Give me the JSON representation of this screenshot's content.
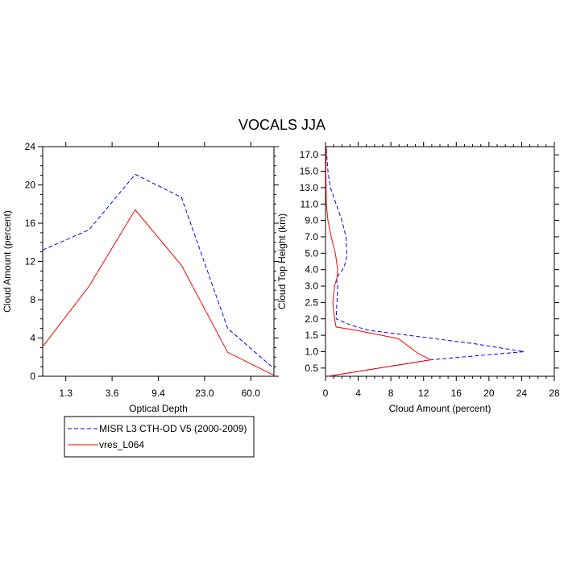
{
  "title": "VOCALS JJA",
  "legend": {
    "items": [
      {
        "label": "MISR L3 CTH-OD V5 (2000-2009)",
        "color": "#0000ff",
        "dash": "dashed"
      },
      {
        "label": "vres_L064",
        "color": "#ff0000",
        "dash": "solid"
      }
    ]
  },
  "chart_data": [
    {
      "type": "line",
      "xlabel": "Optical Depth",
      "ylabel": "Cloud Amount (percent)",
      "xtick_labels": [
        "1.3",
        "3.6",
        "9.4",
        "23.0",
        "60.0"
      ],
      "xtick_index": [
        0.5,
        1.5,
        2.5,
        3.5,
        4.5
      ],
      "ylim": [
        0,
        24
      ],
      "yticks": [
        0,
        4,
        8,
        12,
        16,
        20,
        24
      ],
      "x": [
        0,
        1,
        2,
        3,
        4,
        5
      ],
      "series": [
        {
          "name": "MISR L3 CTH-OD V5 (2000-2009)",
          "values": [
            13.2,
            15.3,
            21.1,
            18.7,
            5.0,
            0.8
          ]
        },
        {
          "name": "vres_L064",
          "values": [
            3.1,
            9.4,
            17.4,
            11.6,
            2.5,
            0.1
          ]
        }
      ]
    },
    {
      "type": "line",
      "xlabel": "Cloud Amount (percent)",
      "ylabel": "Cloud Top Height (km)",
      "xlim": [
        0,
        28
      ],
      "xticks": [
        0,
        4,
        8,
        12,
        16,
        20,
        24,
        28
      ],
      "ytick_labels": [
        "0.5",
        "1.0",
        "1.5",
        "2.0",
        "2.5",
        "3.0",
        "4.0",
        "5.0",
        "7.0",
        "9.0",
        "11.0",
        "13.0",
        "15.0",
        "17.0"
      ],
      "ylim_index": [
        -0.5,
        13.5
      ],
      "series": [
        {
          "name": "MISR L3 CTH-OD V5 (2000-2009)",
          "points": [
            [
              0.3,
              -0.5
            ],
            [
              12.8,
              0.5
            ],
            [
              24.3,
              1.0
            ],
            [
              18.0,
              1.5
            ],
            [
              5.3,
              2.3
            ],
            [
              3.2,
              2.6
            ],
            [
              1.3,
              3.0
            ],
            [
              1.5,
              5.0
            ],
            [
              1.3,
              5.5
            ],
            [
              2.1,
              6.0
            ],
            [
              2.5,
              6.5
            ],
            [
              2.6,
              7.0
            ],
            [
              2.5,
              8.0
            ],
            [
              2.0,
              9.0
            ],
            [
              1.3,
              10.0
            ],
            [
              0.6,
              11.0
            ],
            [
              0.3,
              12.0
            ],
            [
              0.15,
              13.0
            ],
            [
              0.1,
              13.5
            ]
          ]
        },
        {
          "name": "vres_L064",
          "points": [
            [
              0.3,
              -0.5
            ],
            [
              12.9,
              0.5
            ],
            [
              11.3,
              0.9
            ],
            [
              8.9,
              1.8
            ],
            [
              3.8,
              2.3
            ],
            [
              1.3,
              2.5
            ],
            [
              1.1,
              3.0
            ],
            [
              0.9,
              4.0
            ],
            [
              1.1,
              5.0
            ],
            [
              1.4,
              5.5
            ],
            [
              1.5,
              6.0
            ],
            [
              1.2,
              7.0
            ],
            [
              0.7,
              8.0
            ],
            [
              0.3,
              9.0
            ],
            [
              0.1,
              10.0
            ],
            [
              0.05,
              12.0
            ],
            [
              0.1,
              13.5
            ]
          ]
        }
      ]
    }
  ]
}
